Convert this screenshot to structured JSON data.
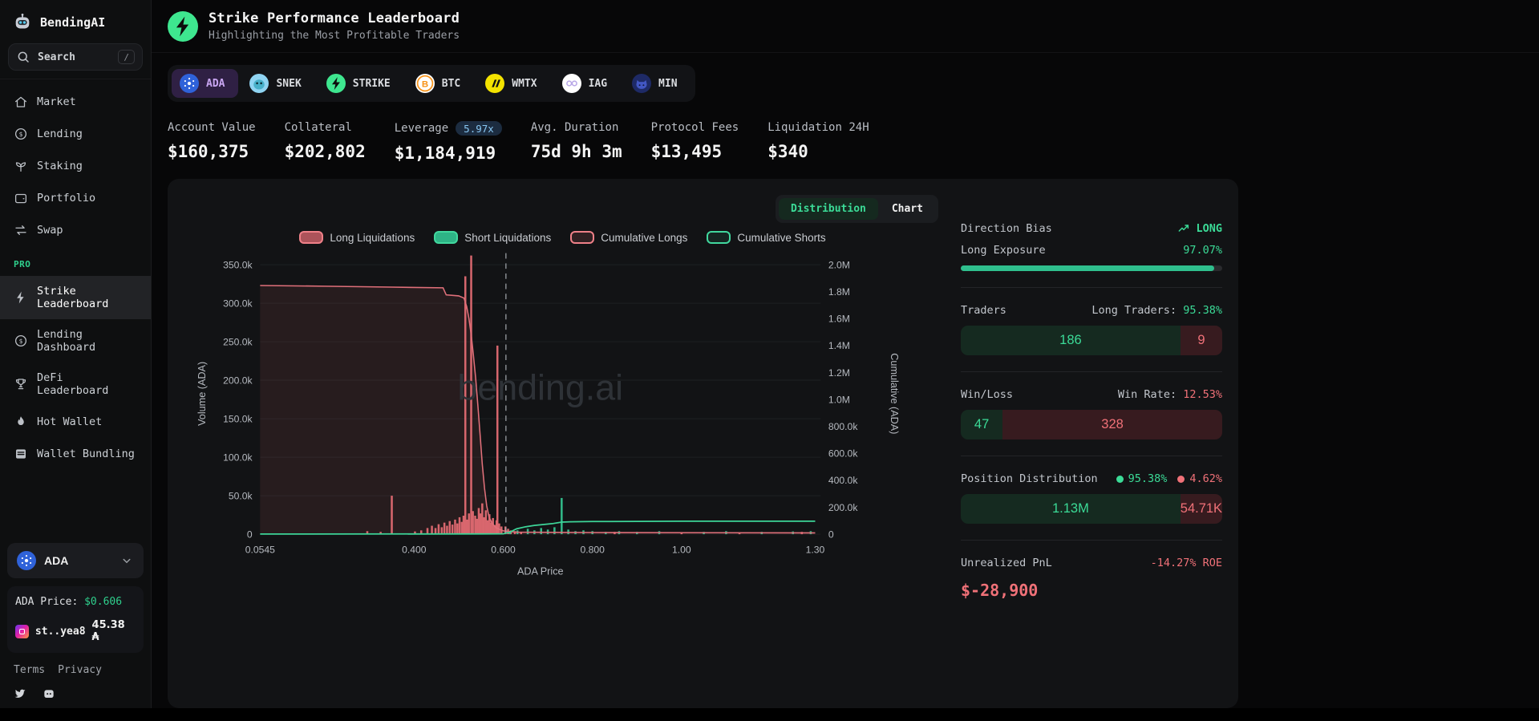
{
  "app": {
    "name": "BendingAI"
  },
  "sidebar": {
    "search": {
      "placeholder": "Search",
      "shortcut": "/"
    },
    "nav": [
      {
        "label": "Market",
        "icon": "home"
      },
      {
        "label": "Lending",
        "icon": "dollar"
      },
      {
        "label": "Staking",
        "icon": "sprout"
      },
      {
        "label": "Portfolio",
        "icon": "wallet"
      },
      {
        "label": "Swap",
        "icon": "swap"
      }
    ],
    "pro_label": "PRO",
    "pro_nav": [
      {
        "label": "Strike Leaderboard",
        "icon": "bolt",
        "active": true
      },
      {
        "label": "Lending Dashboard",
        "icon": "dollar"
      },
      {
        "label": "DeFi Leaderboard",
        "icon": "trophy"
      },
      {
        "label": "Hot Wallet",
        "icon": "flame"
      },
      {
        "label": "Wallet Bundling",
        "icon": "bundle"
      }
    ],
    "token_selector": {
      "label": "ADA"
    },
    "price_label": "ADA Price:",
    "price_value": "$0.606",
    "wallet": {
      "name": "st..yea8",
      "balance": "45.38 ₳"
    },
    "footer_links": [
      "Terms",
      "Privacy"
    ]
  },
  "header": {
    "title": "Strike Performance Leaderboard",
    "subtitle": "Highlighting the Most Profitable Traders"
  },
  "tabs": [
    {
      "label": "ADA",
      "icon": "ada",
      "active": true
    },
    {
      "label": "SNEK",
      "icon": "snek"
    },
    {
      "label": "STRIKE",
      "icon": "strike"
    },
    {
      "label": "BTC",
      "icon": "btc"
    },
    {
      "label": "WMTX",
      "icon": "wmtx"
    },
    {
      "label": "IAG",
      "icon": "iag"
    },
    {
      "label": "MIN",
      "icon": "min"
    }
  ],
  "stats": [
    {
      "label": "Account Value",
      "value": "$160,375"
    },
    {
      "label": "Collateral",
      "value": "$202,802"
    },
    {
      "label": "Leverage",
      "badge": "5.97x",
      "value": "$1,184,919"
    },
    {
      "label": "Avg. Duration",
      "value": "75d 9h 3m"
    },
    {
      "label": "Protocol Fees",
      "value": "$13,495"
    },
    {
      "label": "Liquidation 24H",
      "value": "$340"
    }
  ],
  "chart_panel": {
    "toggle": {
      "distribution": "Distribution",
      "chart": "Chart"
    },
    "watermark": "bending.ai"
  },
  "chart_data": {
    "type": "mixed-bar-line",
    "xlabel": "ADA Price",
    "ylabel_left": "Volume (ADA)",
    "ylabel_right": "Cumulative (ADA)",
    "xlim": [
      0.0545,
      1.312
    ],
    "ylim_left": [
      0,
      365000
    ],
    "ylim_right": [
      0,
      2085000
    ],
    "current_price": 0.606,
    "x_ticks": [
      [
        0.0545,
        "0.0545"
      ],
      [
        0.4,
        "0.400"
      ],
      [
        0.6,
        "0.600"
      ],
      [
        0.8,
        "0.800"
      ],
      [
        1.0,
        "1.00"
      ],
      [
        1.3,
        "1.30"
      ]
    ],
    "y_ticks_left": [
      [
        0,
        "0"
      ],
      [
        50000,
        "50.0k"
      ],
      [
        100000,
        "100.0k"
      ],
      [
        150000,
        "150.0k"
      ],
      [
        200000,
        "200.0k"
      ],
      [
        250000,
        "250.0k"
      ],
      [
        300000,
        "300.0k"
      ],
      [
        350000,
        "350.0k"
      ]
    ],
    "y_ticks_right": [
      [
        0,
        "0"
      ],
      [
        200000,
        "200.0k"
      ],
      [
        400000,
        "400.0k"
      ],
      [
        600000,
        "600.0k"
      ],
      [
        800000,
        "800.0k"
      ],
      [
        1000000,
        "1.0M"
      ],
      [
        1200000,
        "1.2M"
      ],
      [
        1400000,
        "1.4M"
      ],
      [
        1600000,
        "1.6M"
      ],
      [
        1800000,
        "1.8M"
      ],
      [
        2000000,
        "2.0M"
      ]
    ],
    "legend": [
      {
        "label": "Long Liquidations",
        "fill": "rgba(224,106,114,0.75)",
        "border": "#ef8088"
      },
      {
        "label": "Short Liquidations",
        "fill": "#2eb486",
        "border": "#41d89e"
      },
      {
        "label": "Cumulative Longs",
        "fill": "rgba(224,106,114,0.15)",
        "border": "#ef8088"
      },
      {
        "label": "Cumulative Shorts",
        "fill": "rgba(46,180,134,0.12)",
        "border": "#41d89e"
      }
    ],
    "series": {
      "long_liquidations": [
        [
          0.295,
          4000
        ],
        [
          0.325,
          3000
        ],
        [
          0.35,
          50000
        ],
        [
          0.402,
          3500
        ],
        [
          0.416,
          5000
        ],
        [
          0.43,
          8000
        ],
        [
          0.44,
          11000
        ],
        [
          0.448,
          8000
        ],
        [
          0.455,
          13000
        ],
        [
          0.462,
          9000
        ],
        [
          0.468,
          15000
        ],
        [
          0.474,
          11000
        ],
        [
          0.48,
          17000
        ],
        [
          0.486,
          12500
        ],
        [
          0.492,
          19000
        ],
        [
          0.497,
          14000
        ],
        [
          0.502,
          22000
        ],
        [
          0.507,
          16000
        ],
        [
          0.511,
          24000
        ],
        [
          0.515,
          335000
        ],
        [
          0.519,
          19000
        ],
        [
          0.523,
          27000
        ],
        [
          0.528,
          362000
        ],
        [
          0.532,
          30000
        ],
        [
          0.537,
          24000
        ],
        [
          0.541,
          20000
        ],
        [
          0.545,
          34000
        ],
        [
          0.549,
          27000
        ],
        [
          0.553,
          40000
        ],
        [
          0.557,
          22000
        ],
        [
          0.561,
          31000
        ],
        [
          0.565,
          18000
        ],
        [
          0.569,
          26000
        ],
        [
          0.573,
          15000
        ],
        [
          0.577,
          21000
        ],
        [
          0.581,
          12000
        ],
        [
          0.585,
          18000
        ],
        [
          0.587,
          245000
        ],
        [
          0.591,
          14000
        ],
        [
          0.596,
          10000
        ],
        [
          0.605,
          10000
        ],
        [
          0.611,
          7000
        ],
        [
          0.617,
          5000
        ],
        [
          0.626,
          4000
        ],
        [
          0.64,
          3000
        ],
        [
          0.85,
          3000
        ],
        [
          1.0,
          2500
        ],
        [
          1.13,
          2000
        ],
        [
          1.27,
          3000
        ]
      ],
      "short_liquidations": [
        [
          0.615,
          3000
        ],
        [
          0.632,
          5000
        ],
        [
          0.655,
          7000
        ],
        [
          0.67,
          5000
        ],
        [
          0.685,
          8000
        ],
        [
          0.7,
          6000
        ],
        [
          0.715,
          9000
        ],
        [
          0.731,
          47000
        ],
        [
          0.746,
          6000
        ],
        [
          0.762,
          4000
        ],
        [
          0.78,
          5000
        ],
        [
          0.8,
          4000
        ],
        [
          0.83,
          3000
        ],
        [
          0.86,
          4000
        ],
        [
          0.9,
          3000
        ],
        [
          0.95,
          4000
        ],
        [
          1.05,
          3000
        ],
        [
          1.1,
          4000
        ],
        [
          1.18,
          3000
        ],
        [
          1.25,
          3500
        ],
        [
          1.29,
          4000
        ]
      ],
      "cumulative_longs": [
        [
          0.0545,
          1845000
        ],
        [
          0.2,
          1840000
        ],
        [
          0.35,
          1833000
        ],
        [
          0.465,
          1828000
        ],
        [
          0.472,
          1776000
        ],
        [
          0.5,
          1768000
        ],
        [
          0.512,
          1752000
        ],
        [
          0.518,
          1690000
        ],
        [
          0.523,
          1600000
        ],
        [
          0.528,
          1480000
        ],
        [
          0.533,
          1330000
        ],
        [
          0.538,
          1160000
        ],
        [
          0.543,
          960000
        ],
        [
          0.548,
          740000
        ],
        [
          0.553,
          520000
        ],
        [
          0.558,
          340000
        ],
        [
          0.563,
          210000
        ],
        [
          0.568,
          130000
        ],
        [
          0.575,
          80000
        ],
        [
          0.585,
          45000
        ],
        [
          0.6,
          25000
        ],
        [
          0.63,
          15000
        ],
        [
          0.8,
          12000
        ],
        [
          1.3,
          10000
        ]
      ],
      "cumulative_shorts": [
        [
          0.0545,
          1000
        ],
        [
          0.55,
          1500
        ],
        [
          0.6,
          3000
        ],
        [
          0.615,
          15000
        ],
        [
          0.63,
          40000
        ],
        [
          0.65,
          55000
        ],
        [
          0.67,
          65000
        ],
        [
          0.69,
          72000
        ],
        [
          0.71,
          78000
        ],
        [
          0.731,
          90000
        ],
        [
          0.75,
          92000
        ],
        [
          0.8,
          94000
        ],
        [
          0.9,
          95000
        ],
        [
          1.0,
          96000
        ],
        [
          1.1,
          96000
        ],
        [
          1.2,
          97000
        ],
        [
          1.3,
          97000
        ]
      ]
    }
  },
  "side_panel": {
    "direction_bias": {
      "label": "Direction Bias",
      "value": "LONG"
    },
    "long_exposure": {
      "label": "Long Exposure",
      "value": "97.07%",
      "pct": 97.07
    },
    "traders": {
      "label": "Traders",
      "right_label": "Long Traders:",
      "right_value": "95.38%",
      "long": "186",
      "short": "9",
      "long_width_pct": 84
    },
    "win_loss": {
      "label": "Win/Loss",
      "right_label": "Win Rate:",
      "right_value": "12.53%",
      "wins": "47",
      "losses": "328",
      "win_width_pct": 16
    },
    "position_distribution": {
      "label": "Position Distribution",
      "long_pct_label": "95.38%",
      "short_pct_label": "4.62%",
      "long_value": "1.13M",
      "short_value": "54.71K",
      "long_width_pct": 84
    },
    "unrealized_pnl": {
      "label": "Unrealized PnL",
      "roe": "-14.27% ROE",
      "value": "$-28,900"
    }
  },
  "colors": {
    "accent_green": "#3bdb97",
    "red": "#f07178",
    "bar_red": "#e06a72",
    "bar_green": "#34c28f",
    "line_red": "#e0707a",
    "line_green": "#3dd598",
    "grid": "#1e2023",
    "axis_text": "#b6bac0",
    "watermark": "#2e3237",
    "dashed_marker": "#a9adb3"
  }
}
